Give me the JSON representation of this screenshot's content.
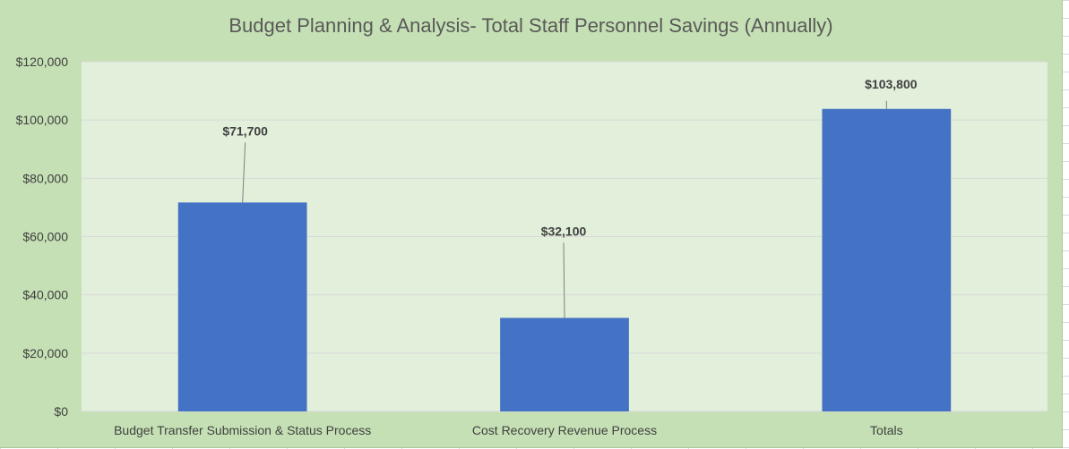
{
  "chart_data": {
    "type": "bar",
    "title": "Budget Planning & Analysis- Total Staff Personnel Savings (Annually)",
    "categories": [
      "Budget Transfer Submission & Status Process",
      "Cost Recovery Revenue Process",
      "Totals"
    ],
    "values": [
      71700,
      32100,
      103800
    ],
    "data_labels": [
      "$71,700",
      "$32,100",
      "$103,800"
    ],
    "ylim": [
      0,
      120000
    ],
    "yticks": [
      0,
      20000,
      40000,
      60000,
      80000,
      100000,
      120000
    ],
    "ytick_labels": [
      "$0",
      "$20,000",
      "$40,000",
      "$60,000",
      "$80,000",
      "$100,000",
      "$120,000"
    ],
    "grid": true,
    "legend": "none",
    "colors": {
      "bar": "#4472c4",
      "plot_bg": "#e2efda",
      "chart_bg": "#c5e0b4",
      "gridline": "#d9d9d9",
      "leader_line": "#7f7f7f"
    }
  }
}
